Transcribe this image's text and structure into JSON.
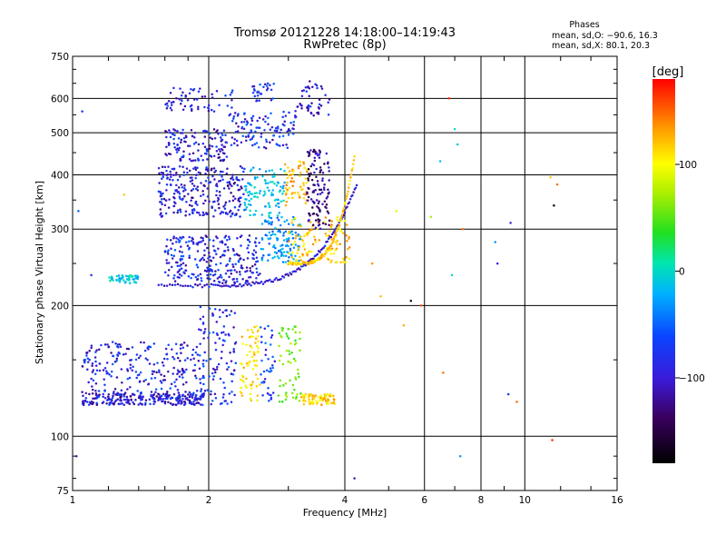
{
  "chart_data": {
    "type": "scatter",
    "title": "Tromsø 20121228 14:18:00–14:19:43",
    "subtitle": "RwPretec (8p)",
    "xlabel": "Frequency [MHz]",
    "ylabel": "Stationary phase Virtual Height [km]",
    "x_scale": "log",
    "y_scale": "log",
    "xlim": [
      1,
      16
    ],
    "ylim": [
      75,
      750
    ],
    "x_ticks": [
      1,
      2,
      4,
      6,
      8,
      10,
      16
    ],
    "x_tick_labels": [
      "1",
      "2",
      "4",
      "6",
      "8",
      "10",
      "16"
    ],
    "x_grid": [
      2,
      4,
      6,
      8,
      10
    ],
    "x_minor_ticks": [
      1.2,
      1.4,
      1.6,
      1.8,
      3,
      5,
      7,
      9,
      12,
      14
    ],
    "y_ticks": [
      75,
      100,
      200,
      300,
      400,
      500,
      600,
      750
    ],
    "y_tick_labels": [
      "75",
      "100",
      "200",
      "300",
      "400",
      "500",
      "600",
      "750"
    ],
    "y_grid": [
      100,
      200,
      300,
      400,
      500,
      600
    ],
    "grid": true,
    "stats": {
      "header": "Phases",
      "line_o": "mean, sd,O: −90.6, 16.3",
      "line_x": "mean, sd,X:  80.1, 20.3"
    },
    "colorbar": {
      "label": "[deg]",
      "range": [
        -180,
        180
      ],
      "ticks": [
        100,
        0,
        -100
      ],
      "tick_labels": [
        "100",
        "0",
        "−100"
      ],
      "placement": "right"
    },
    "series": [
      {
        "values_note": "",
        "clusters": [
          {
            "f0": 1.05,
            "f1": 1.95,
            "h0": 118,
            "h1": 126,
            "phase": -110,
            "n": 260
          },
          {
            "f0": 1.05,
            "f1": 1.95,
            "h0": 126,
            "h1": 165,
            "phase": -105,
            "n": 220
          },
          {
            "f0": 1.9,
            "f1": 2.3,
            "h0": 118,
            "h1": 200,
            "phase": -100,
            "n": 110
          },
          {
            "f0": 2.35,
            "f1": 2.6,
            "h0": 120,
            "h1": 180,
            "phase": 110,
            "n": 70
          },
          {
            "f0": 2.6,
            "f1": 2.8,
            "h0": 120,
            "h1": 180,
            "phase": -90,
            "n": 40
          },
          {
            "f0": 2.85,
            "f1": 3.2,
            "h0": 120,
            "h1": 180,
            "phase": 40,
            "n": 60
          },
          {
            "f0": 3.2,
            "f1": 3.8,
            "h0": 118,
            "h1": 125,
            "phase": 115,
            "n": 80
          },
          {
            "f0": 1.2,
            "f1": 1.4,
            "h0": 225,
            "h1": 235,
            "phase": -35,
            "n": 50
          },
          {
            "f0": 1.6,
            "f1": 2.6,
            "h0": 225,
            "h1": 290,
            "phase": -105,
            "n": 260
          },
          {
            "f0": 2.6,
            "f1": 3.2,
            "h0": 250,
            "h1": 320,
            "phase": -60,
            "n": 120
          },
          {
            "f0": 3.0,
            "f1": 4.1,
            "h0": 250,
            "h1": 320,
            "phase": 120,
            "n": 120
          },
          {
            "f0": 1.55,
            "f1": 2.4,
            "h0": 320,
            "h1": 420,
            "phase": -110,
            "n": 260
          },
          {
            "f0": 2.4,
            "f1": 2.95,
            "h0": 320,
            "h1": 420,
            "phase": -40,
            "n": 100
          },
          {
            "f0": 2.95,
            "f1": 3.3,
            "h0": 340,
            "h1": 430,
            "phase": 125,
            "n": 60
          },
          {
            "f0": 3.3,
            "f1": 3.7,
            "h0": 300,
            "h1": 460,
            "phase": -130,
            "n": 120
          },
          {
            "f0": 1.6,
            "f1": 2.2,
            "h0": 430,
            "h1": 510,
            "phase": -110,
            "n": 130
          },
          {
            "f0": 2.2,
            "f1": 3.1,
            "h0": 460,
            "h1": 560,
            "phase": -100,
            "n": 110
          },
          {
            "f0": 1.6,
            "f1": 2.3,
            "h0": 560,
            "h1": 640,
            "phase": -105,
            "n": 60
          },
          {
            "f0": 2.5,
            "f1": 2.8,
            "h0": 590,
            "h1": 650,
            "phase": -100,
            "n": 30
          },
          {
            "f0": 3.1,
            "f1": 3.7,
            "h0": 540,
            "h1": 660,
            "phase": -110,
            "n": 50
          }
        ],
        "curves": [
          {
            "f0": 1.55,
            "f1": 4.25,
            "h0": 222,
            "h1": 380,
            "p": 4,
            "phase": -110,
            "n": 120
          },
          {
            "f0": 3.0,
            "f1": 4.2,
            "h0": 250,
            "h1": 440,
            "p": 4,
            "phase": 120,
            "n": 90
          }
        ],
        "scattered": [
          {
            "f": 1.02,
            "h": 90,
            "phase": -110
          },
          {
            "f": 1.03,
            "h": 330,
            "phase": -80
          },
          {
            "f": 1.05,
            "h": 560,
            "phase": -100
          },
          {
            "f": 1.1,
            "h": 235,
            "phase": -100
          },
          {
            "f": 1.3,
            "h": 360,
            "phase": 120
          },
          {
            "f": 4.2,
            "h": 80,
            "phase": -120
          },
          {
            "f": 4.6,
            "h": 250,
            "phase": 140
          },
          {
            "f": 4.8,
            "h": 210,
            "phase": 125
          },
          {
            "f": 5.2,
            "h": 330,
            "phase": 90
          },
          {
            "f": 5.4,
            "h": 180,
            "phase": 130
          },
          {
            "f": 5.6,
            "h": 205,
            "phase": -170
          },
          {
            "f": 5.9,
            "h": 200,
            "phase": 160
          },
          {
            "f": 6.2,
            "h": 320,
            "phase": 60
          },
          {
            "f": 6.5,
            "h": 430,
            "phase": -40
          },
          {
            "f": 6.6,
            "h": 140,
            "phase": 150
          },
          {
            "f": 6.8,
            "h": 600,
            "phase": 170
          },
          {
            "f": 6.9,
            "h": 235,
            "phase": -20
          },
          {
            "f": 7.0,
            "h": 510,
            "phase": -20
          },
          {
            "f": 7.1,
            "h": 470,
            "phase": -40
          },
          {
            "f": 7.2,
            "h": 90,
            "phase": -60
          },
          {
            "f": 7.3,
            "h": 300,
            "phase": 150
          },
          {
            "f": 8.6,
            "h": 280,
            "phase": -60
          },
          {
            "f": 8.7,
            "h": 250,
            "phase": -110
          },
          {
            "f": 9.2,
            "h": 125,
            "phase": -100
          },
          {
            "f": 9.3,
            "h": 310,
            "phase": -110
          },
          {
            "f": 9.6,
            "h": 120,
            "phase": 150
          },
          {
            "f": 11.4,
            "h": 395,
            "phase": 120
          },
          {
            "f": 11.8,
            "h": 380,
            "phase": 150
          },
          {
            "f": 11.6,
            "h": 340,
            "phase": -180
          },
          {
            "f": 11.5,
            "h": 98,
            "phase": 170
          }
        ]
      }
    ]
  }
}
